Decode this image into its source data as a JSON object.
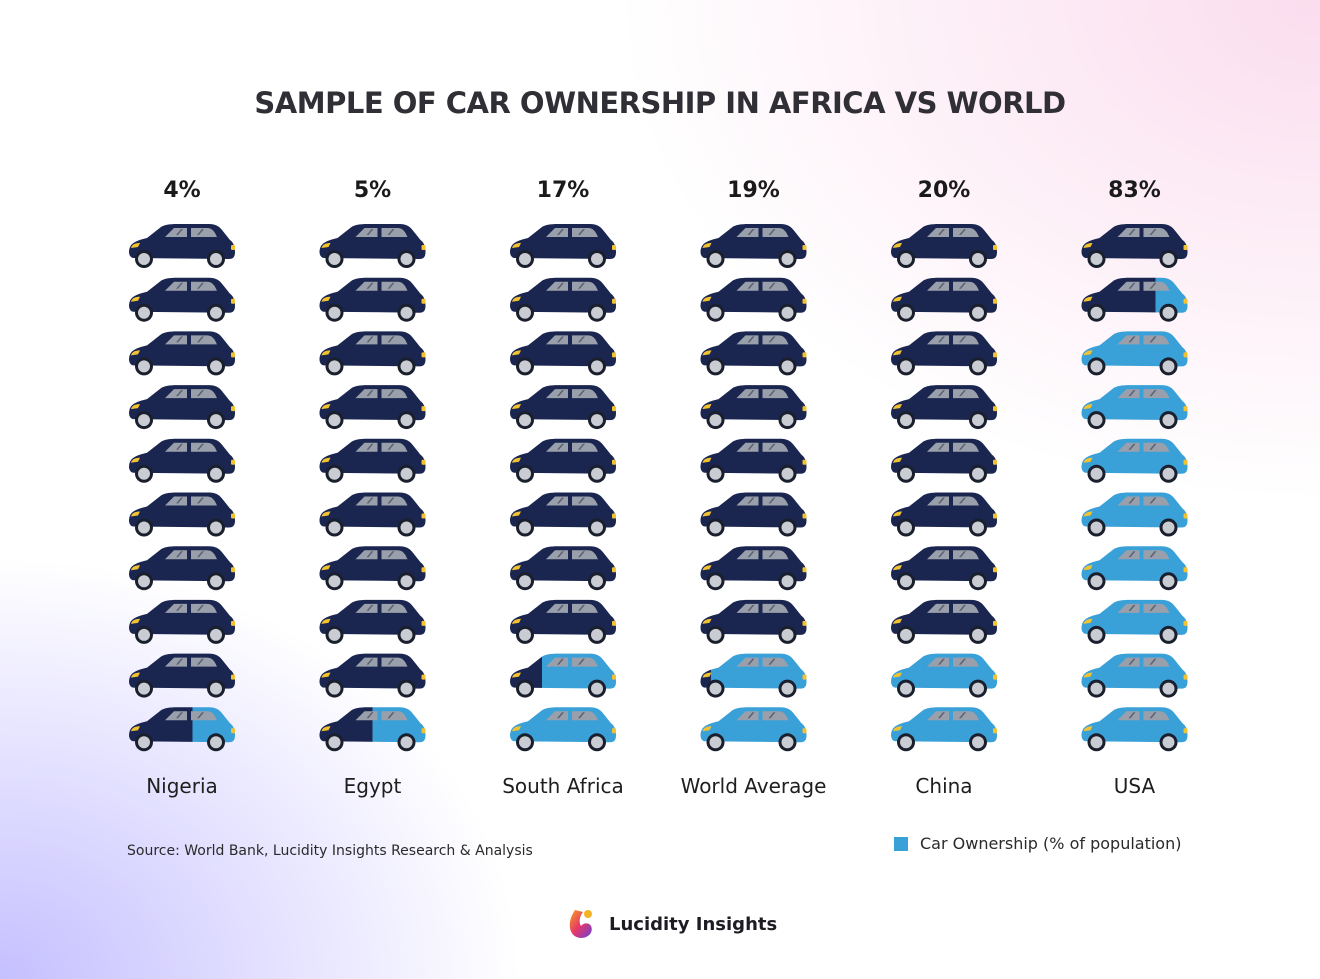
{
  "title": "SAMPLE OF CAR OWNERSHIP IN AFRICA VS WORLD",
  "source": "Source: World Bank, Lucidity Insights Research & Analysis",
  "legend": {
    "label": "Car Ownership (% of population)",
    "color": "#3aa0d8"
  },
  "brand": {
    "name": "Lucidity Insights"
  },
  "colors": {
    "owned": "#3aa0d8",
    "not_owned": "#1a2650",
    "window": "#9aa0ab",
    "wheel": "#c9ccd2",
    "headlight": "#f2c230"
  },
  "chart_data": {
    "type": "pictogram",
    "title": "SAMPLE OF CAR OWNERSHIP IN AFRICA VS WORLD",
    "unit": "% of population",
    "icons_per_column": 10,
    "categories": [
      "Nigeria",
      "Egypt",
      "South Africa",
      "World Average",
      "China",
      "USA"
    ],
    "values": [
      4,
      5,
      17,
      19,
      20,
      83
    ],
    "labels": [
      "4%",
      "5%",
      "17%",
      "19%",
      "20%",
      "83%"
    ],
    "series": [
      {
        "name": "Car Ownership (% of population)",
        "values": [
          4,
          5,
          17,
          19,
          20,
          83
        ]
      }
    ]
  }
}
